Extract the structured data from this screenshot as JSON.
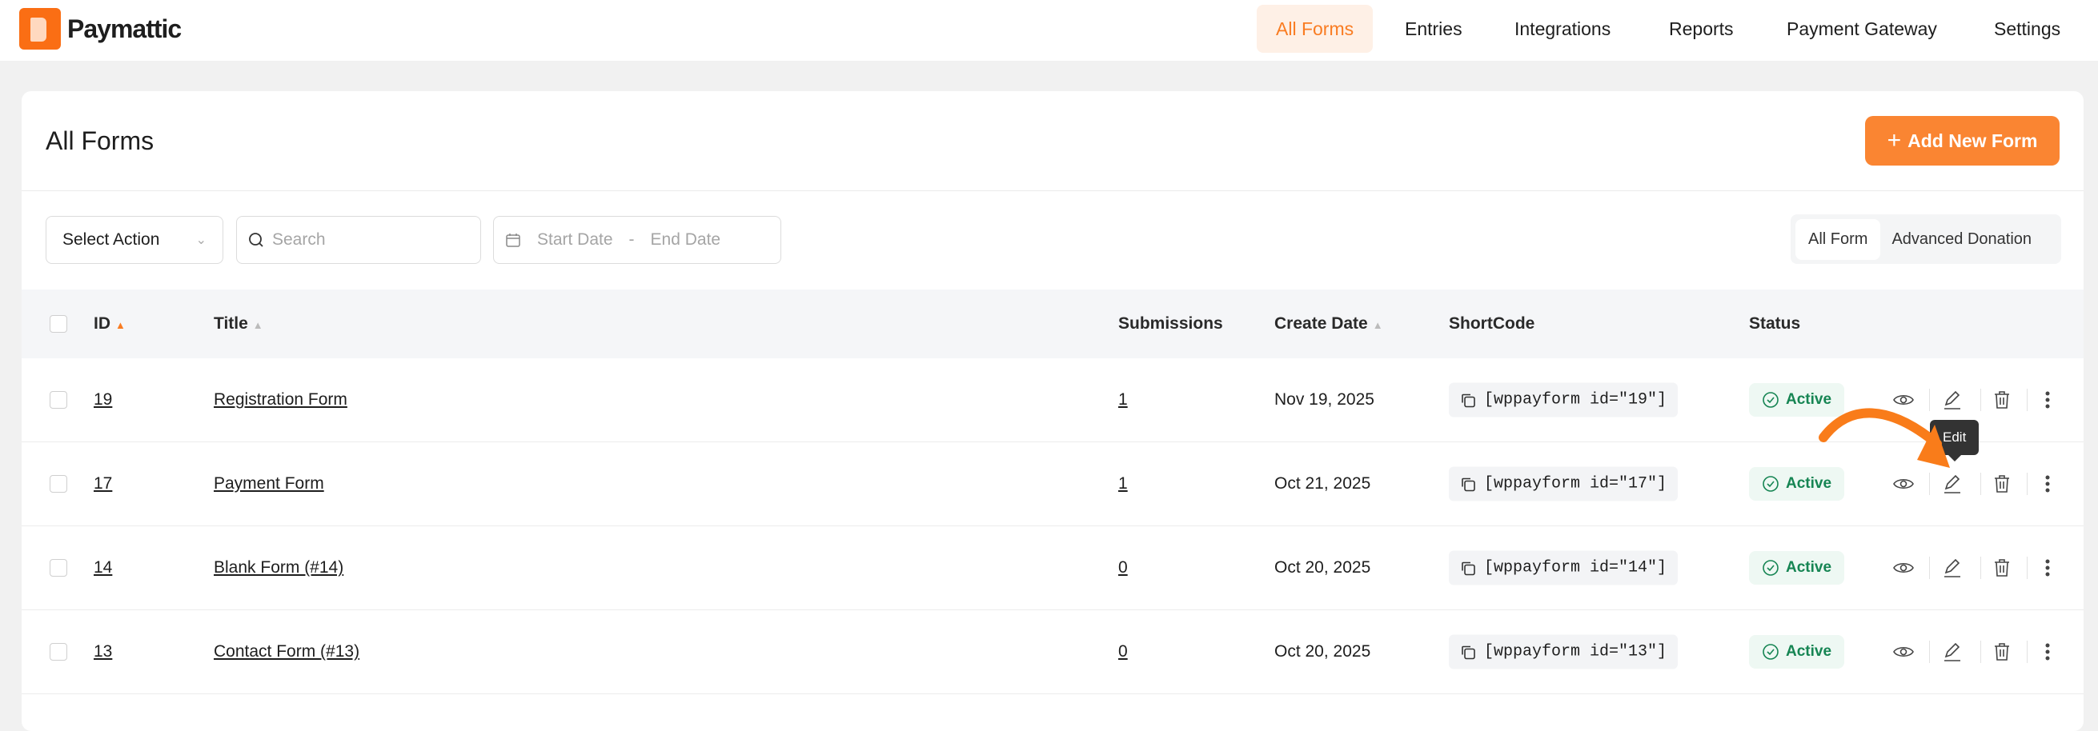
{
  "brand": {
    "name": "Paymattic",
    "accent": "#fa8532"
  },
  "nav": [
    {
      "label": "All Forms",
      "active": true
    },
    {
      "label": "Entries"
    },
    {
      "label": "Integrations"
    },
    {
      "label": "Reports"
    },
    {
      "label": "Payment Gateway"
    },
    {
      "label": "Settings"
    }
  ],
  "page": {
    "title": "All Forms",
    "add_button": "Add New Form"
  },
  "filters": {
    "action": "Select Action",
    "search_placeholder": "Search",
    "start_placeholder": "Start Date",
    "separator": "-",
    "end_placeholder": "End Date",
    "segments": [
      "All Form",
      "Advanced Donation"
    ],
    "selected_segment": "All Form"
  },
  "table": {
    "headers": {
      "id": "ID",
      "title": "Title",
      "submissions": "Submissions",
      "date": "Create Date",
      "shortcode": "ShortCode",
      "status": "Status"
    },
    "rows": [
      {
        "id": "19",
        "title": "Registration Form",
        "submissions": "1",
        "date": "Nov 19, 2025",
        "shortcode": "[wppayform id=\"19\"]",
        "status": "Active"
      },
      {
        "id": "17",
        "title": "Payment Form",
        "submissions": "1",
        "date": "Oct 21, 2025",
        "shortcode": "[wppayform id=\"17\"]",
        "status": "Active"
      },
      {
        "id": "14",
        "title": "Blank Form (#14)",
        "submissions": "0",
        "date": "Oct 20, 2025",
        "shortcode": "[wppayform id=\"14\"]",
        "status": "Active"
      },
      {
        "id": "13",
        "title": "Contact Form (#13)",
        "submissions": "0",
        "date": "Oct 20, 2025",
        "shortcode": "[wppayform id=\"13\"]",
        "status": "Active"
      }
    ]
  },
  "tooltip": "Edit"
}
